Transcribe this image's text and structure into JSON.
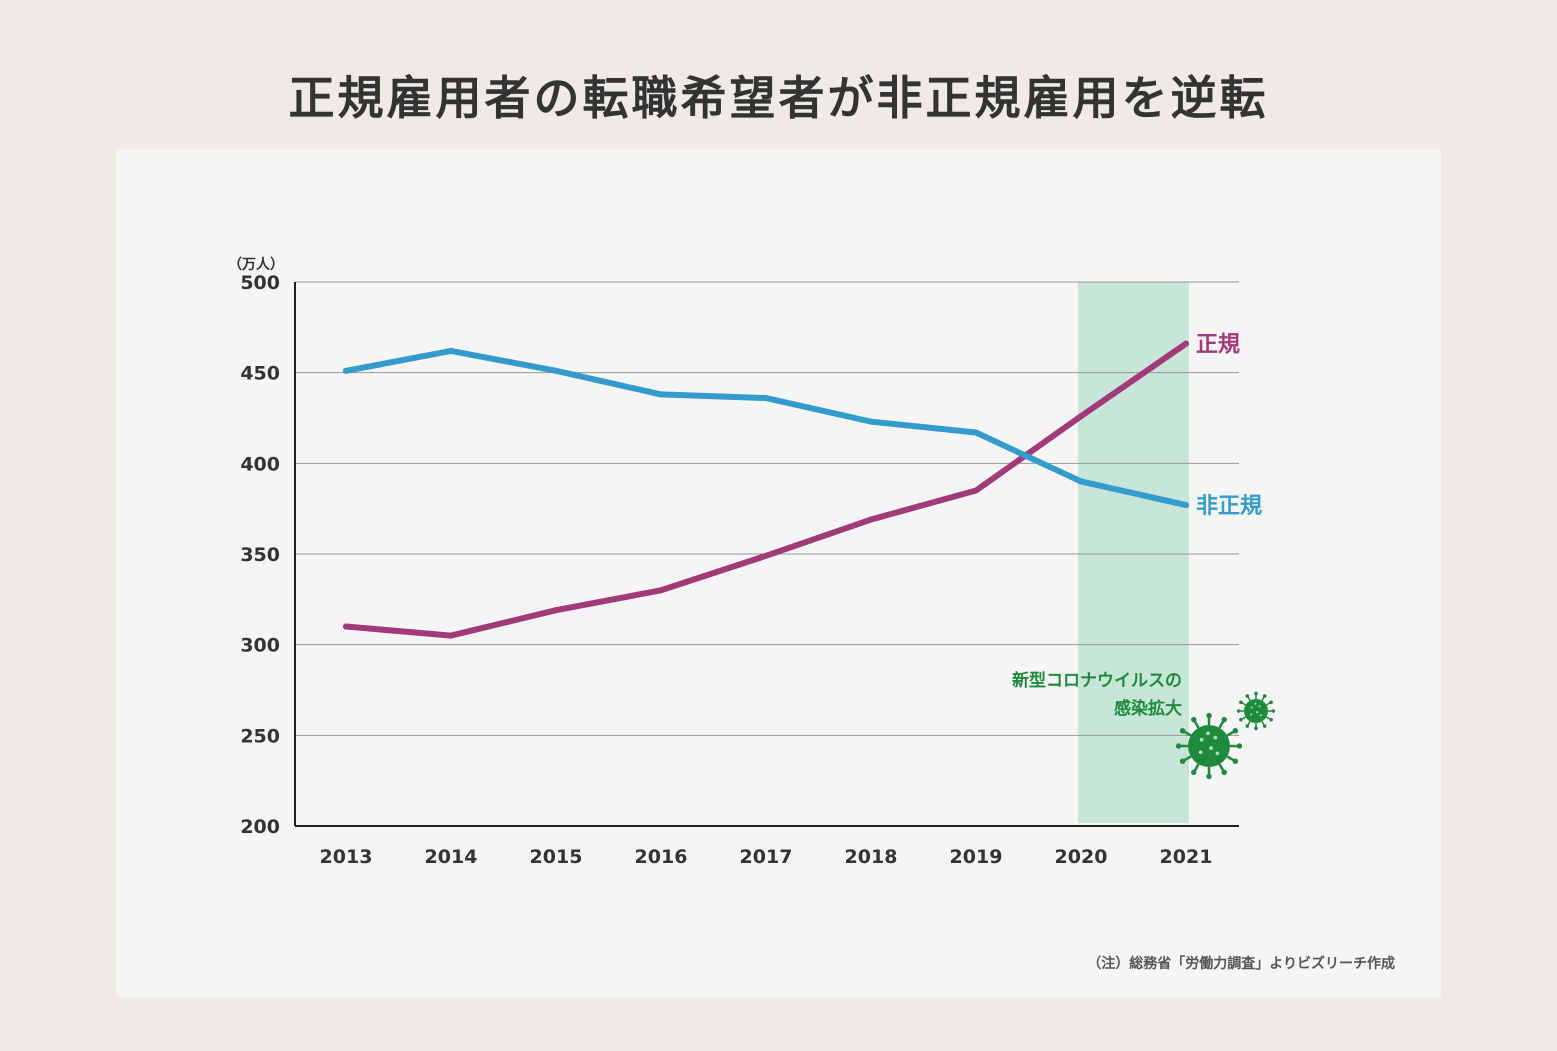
{
  "title": "正規雇用者の転職希望者が非正規雇用を逆転",
  "source_note": "（注）総務省「労働力調査」よりビズリーチ作成",
  "colors": {
    "background": "#eeebe6",
    "panel": "#f5f5f5",
    "regular": "#a23a7a",
    "nonregular": "#339ccc",
    "covid_band": "#c8e6d7",
    "covid_text": "#1e8a3c",
    "grid": "#999999",
    "axis": "#222222"
  },
  "chart_data": {
    "type": "line",
    "title": "正規雇用者の転職希望者が非正規雇用を逆転",
    "unit_label": "（万人）",
    "xlabel": "",
    "ylabel": "（万人）",
    "categories": [
      "2013",
      "2014",
      "2015",
      "2016",
      "2017",
      "2018",
      "2019",
      "2020",
      "2021"
    ],
    "ylim": [
      200,
      500
    ],
    "yticks": [
      200,
      250,
      300,
      350,
      400,
      450,
      500
    ],
    "grid": true,
    "series": [
      {
        "name": "正規",
        "color": "#a23a7a",
        "values": [
          310,
          305,
          319,
          330,
          349,
          369,
          385,
          426,
          466
        ]
      },
      {
        "name": "非正規",
        "color": "#339ccc",
        "values": [
          451,
          462,
          451,
          438,
          436,
          423,
          417,
          390,
          377
        ]
      }
    ],
    "highlight": {
      "from": "2020",
      "to": "2021",
      "label_lines": [
        "新型コロナウイルスの",
        "感染拡大"
      ],
      "icon": "virus-icon"
    }
  }
}
